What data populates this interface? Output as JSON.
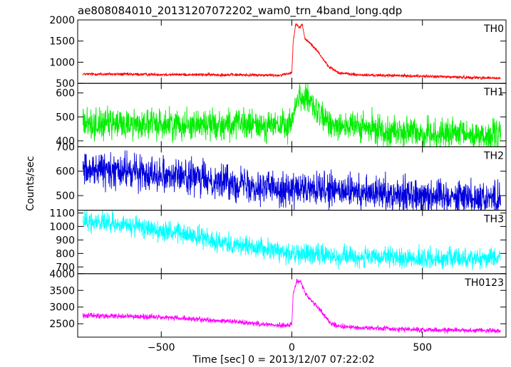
{
  "chart_data": {
    "type": "line",
    "title": "ae808084010_20131207072202_wam0_trn_4band_long.qdp",
    "xlabel": "Time [sec] 0 = 2013/12/07 07:22:02",
    "ylabel": "Counts/sec",
    "xlim": [
      -820,
      820
    ],
    "xticks": [
      -500,
      0,
      500
    ],
    "xtick_labels": [
      "−500",
      "0",
      "500"
    ],
    "grid": false,
    "panels": [
      {
        "name": "TH0",
        "color": "#ff0000",
        "ylim": [
          500,
          2000
        ],
        "yticks": [
          500,
          1000,
          1500,
          2000
        ],
        "baseline": [
          [
            -800,
            720
          ],
          [
            -200,
            700
          ],
          [
            -50,
            690
          ],
          [
            0,
            750
          ],
          [
            5,
            1500
          ],
          [
            15,
            1900
          ],
          [
            30,
            1820
          ],
          [
            40,
            1900
          ],
          [
            50,
            1550
          ],
          [
            70,
            1450
          ],
          [
            100,
            1250
          ],
          [
            140,
            900
          ],
          [
            180,
            750
          ],
          [
            250,
            700
          ],
          [
            500,
            670
          ],
          [
            800,
            620
          ]
        ],
        "noise": 30
      },
      {
        "name": "TH1",
        "color": "#00ee00",
        "ylim": [
          375,
          640
        ],
        "yticks": [
          400,
          500,
          600
        ],
        "baseline": [
          [
            -800,
            470
          ],
          [
            -400,
            470
          ],
          [
            -100,
            465
          ],
          [
            -5,
            460
          ],
          [
            10,
            540
          ],
          [
            30,
            590
          ],
          [
            50,
            580
          ],
          [
            80,
            540
          ],
          [
            130,
            480
          ],
          [
            250,
            455
          ],
          [
            500,
            430
          ],
          [
            800,
            420
          ]
        ],
        "noise": 55
      },
      {
        "name": "TH2",
        "color": "#0000dd",
        "ylim": [
          440,
          700
        ],
        "yticks": [
          500,
          600,
          700
        ],
        "baseline": [
          [
            -800,
            610
          ],
          [
            -500,
            590
          ],
          [
            -200,
            550
          ],
          [
            0,
            525
          ],
          [
            300,
            510
          ],
          [
            500,
            505
          ],
          [
            800,
            490
          ]
        ],
        "noise": 60
      },
      {
        "name": "TH3",
        "color": "#00ffff",
        "ylim": [
          650,
          1120
        ],
        "yticks": [
          700,
          800,
          900,
          1000,
          1100
        ],
        "baseline": [
          [
            -800,
            1040
          ],
          [
            -600,
            1000
          ],
          [
            -400,
            940
          ],
          [
            -200,
            860
          ],
          [
            0,
            800
          ],
          [
            300,
            770
          ],
          [
            500,
            760
          ],
          [
            800,
            770
          ]
        ],
        "noise": 65
      },
      {
        "name": "TH0123",
        "color": "#ff00ff",
        "ylim": [
          2100,
          4000
        ],
        "yticks": [
          2500,
          3000,
          3500,
          4000
        ],
        "baseline": [
          [
            -800,
            2750
          ],
          [
            -500,
            2700
          ],
          [
            -200,
            2550
          ],
          [
            -30,
            2440
          ],
          [
            0,
            2500
          ],
          [
            5,
            3400
          ],
          [
            20,
            3800
          ],
          [
            35,
            3750
          ],
          [
            55,
            3350
          ],
          [
            80,
            3150
          ],
          [
            110,
            2900
          ],
          [
            150,
            2500
          ],
          [
            200,
            2400
          ],
          [
            500,
            2320
          ],
          [
            800,
            2300
          ]
        ],
        "noise": 65
      }
    ]
  }
}
